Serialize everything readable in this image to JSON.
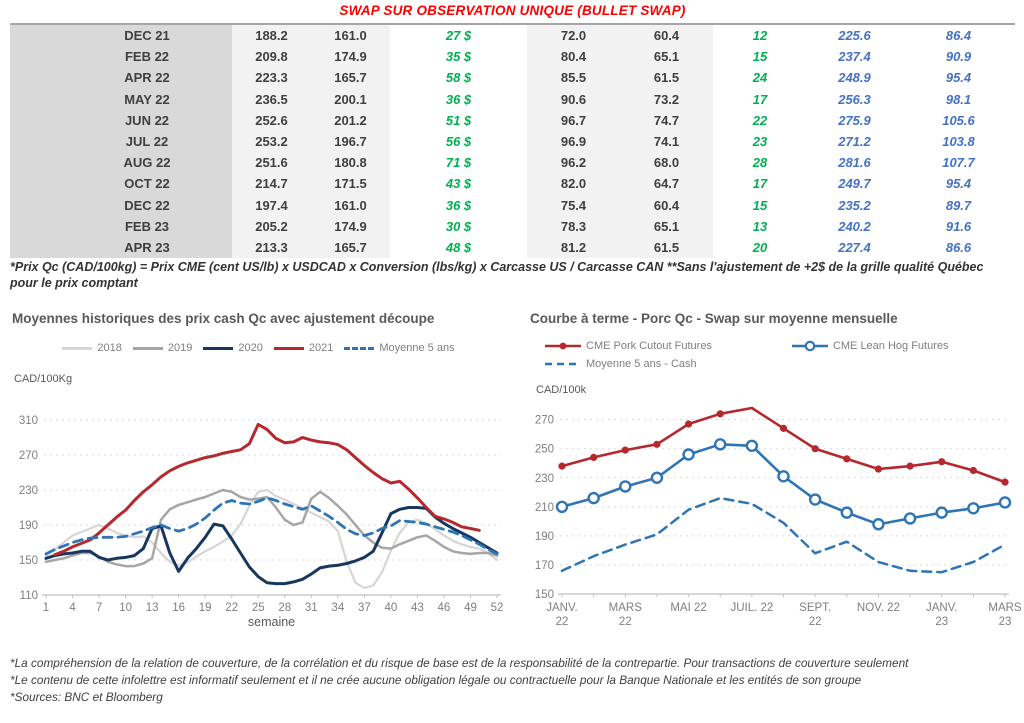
{
  "title": "SWAP SUR OBSERVATION UNIQUE (BULLET SWAP)",
  "table": {
    "rows": [
      [
        "DEC 21",
        "188.2",
        "161.0",
        "27 $",
        "72.0",
        "60.4",
        "12",
        "225.6",
        "86.4"
      ],
      [
        "FEB 22",
        "209.8",
        "174.9",
        "35 $",
        "80.4",
        "65.1",
        "15",
        "237.4",
        "90.9"
      ],
      [
        "APR 22",
        "223.3",
        "165.7",
        "58 $",
        "85.5",
        "61.5",
        "24",
        "248.9",
        "95.4"
      ],
      [
        "MAY 22",
        "236.5",
        "200.1",
        "36 $",
        "90.6",
        "73.2",
        "17",
        "256.3",
        "98.1"
      ],
      [
        "JUN 22",
        "252.6",
        "201.2",
        "51 $",
        "96.7",
        "74.7",
        "22",
        "275.9",
        "105.6"
      ],
      [
        "JUL 22",
        "253.2",
        "196.7",
        "56 $",
        "96.9",
        "74.1",
        "23",
        "271.2",
        "103.8"
      ],
      [
        "AUG 22",
        "251.6",
        "180.8",
        "71 $",
        "96.2",
        "68.0",
        "28",
        "281.6",
        "107.7"
      ],
      [
        "OCT 22",
        "214.7",
        "171.5",
        "43 $",
        "82.0",
        "64.7",
        "17",
        "249.7",
        "95.4"
      ],
      [
        "DEC 22",
        "197.4",
        "161.0",
        "36 $",
        "75.4",
        "60.4",
        "15",
        "235.2",
        "89.7"
      ],
      [
        "FEB 23",
        "205.2",
        "174.9",
        "30 $",
        "78.3",
        "65.1",
        "13",
        "240.2",
        "91.6"
      ],
      [
        "APR 23",
        "213.3",
        "165.7",
        "48 $",
        "81.2",
        "61.5",
        "20",
        "227.4",
        "86.6"
      ]
    ]
  },
  "table_footnote": "*Prix Qc (CAD/100kg) = Prix CME (cent US/lb) x USDCAD x Conversion (lbs/kg) x Carcasse US / Carcasse CAN **Sans l'ajustement de +2$ de la grille qualité Québec pour le prix comptant",
  "chart_data": [
    {
      "id": "historical-cash-prices",
      "type": "line",
      "title": "Moyennes historiques des prix cash Qc avec ajustement découpe",
      "unit_label": "CAD/100Kg",
      "xlabel": "semaine",
      "xticks": [
        1,
        4,
        7,
        10,
        13,
        16,
        19,
        22,
        25,
        28,
        31,
        34,
        37,
        40,
        43,
        46,
        49,
        52
      ],
      "ylim": [
        110,
        310
      ],
      "yticks": [
        110,
        150,
        190,
        230,
        270,
        310
      ],
      "grid": "horizontal-dashed",
      "legend_position": "top",
      "series": [
        {
          "name": "2018",
          "color": "#d6d6d6",
          "style": "solid",
          "width": 2.2,
          "values": [
            155,
            162,
            170,
            178,
            182,
            186,
            190,
            186,
            181,
            178,
            176,
            177,
            170,
            158,
            148,
            144,
            147,
            154,
            160,
            165,
            171,
            178,
            191,
            212,
            228,
            230,
            223,
            219,
            214,
            209,
            204,
            199,
            194,
            183,
            148,
            124,
            118,
            121,
            136,
            161,
            181,
            193,
            196,
            192,
            185,
            178,
            172,
            168,
            165,
            163,
            158,
            150
          ]
        },
        {
          "name": "2019",
          "color": "#a6a6a6",
          "style": "solid",
          "width": 2.5,
          "values": [
            148,
            150,
            152,
            155,
            158,
            158,
            154,
            148,
            145,
            143,
            143,
            146,
            152,
            196,
            208,
            213,
            216,
            219,
            222,
            226,
            230,
            228,
            222,
            219,
            220,
            222,
            210,
            196,
            190,
            193,
            220,
            228,
            221,
            212,
            202,
            190,
            178,
            170,
            164,
            163,
            168,
            172,
            176,
            178,
            172,
            165,
            160,
            158,
            157,
            158,
            158,
            155
          ]
        },
        {
          "name": "2020",
          "color": "#17375e",
          "style": "solid",
          "width": 3,
          "values": [
            152,
            155,
            157,
            158,
            160,
            160,
            153,
            150,
            152,
            153,
            155,
            163,
            186,
            189,
            158,
            137,
            152,
            163,
            176,
            191,
            189,
            174,
            158,
            142,
            131,
            124,
            123,
            123,
            125,
            128,
            134,
            141,
            143,
            144,
            146,
            149,
            153,
            160,
            181,
            203,
            208,
            210,
            210,
            209,
            199,
            192,
            186,
            181,
            176,
            170,
            164,
            158
          ]
        },
        {
          "name": "2021",
          "color": "#b5282d",
          "style": "solid",
          "width": 3,
          "values": [
            null,
            156,
            160,
            165,
            169,
            173,
            181,
            190,
            199,
            207,
            218,
            228,
            236,
            245,
            252,
            257,
            261,
            264,
            267,
            269,
            272,
            274,
            276,
            283,
            305,
            299,
            289,
            284,
            285,
            290,
            287,
            285,
            284,
            282,
            276,
            267,
            258,
            250,
            243,
            238,
            240,
            231,
            221,
            210,
            200,
            197,
            193,
            188,
            186,
            184,
            null,
            null
          ]
        },
        {
          "name": "Moyenne 5 ans",
          "color": "#2e75b6",
          "style": "dashed",
          "width": 2.8,
          "values": [
            157,
            162,
            166,
            170,
            173,
            175,
            176,
            176,
            176,
            177,
            180,
            183,
            187,
            190,
            186,
            183,
            186,
            191,
            198,
            207,
            215,
            218,
            215,
            214,
            217,
            221,
            218,
            214,
            211,
            208,
            212,
            206,
            200,
            193,
            185,
            180,
            178,
            181,
            186,
            189,
            195,
            194,
            193,
            191,
            188,
            185,
            182,
            178,
            173,
            168,
            162,
            157
          ]
        }
      ]
    },
    {
      "id": "forward-curve",
      "type": "line",
      "title": "Courbe à terme - Porc Qc - Swap sur moyenne mensuelle",
      "unit_label": "CAD/100k",
      "n_points": 15,
      "x_ticks": [
        {
          "pos": 0,
          "lines": [
            "JANV.",
            "22"
          ]
        },
        {
          "pos": 2,
          "lines": [
            "MARS",
            "22"
          ]
        },
        {
          "pos": 4,
          "lines": [
            "MAI 22"
          ]
        },
        {
          "pos": 6,
          "lines": [
            "JUIL. 22"
          ]
        },
        {
          "pos": 8,
          "lines": [
            "SEPT.",
            "22"
          ]
        },
        {
          "pos": 10,
          "lines": [
            "NOV. 22"
          ]
        },
        {
          "pos": 12,
          "lines": [
            "JANV.",
            "23"
          ]
        },
        {
          "pos": 14,
          "lines": [
            "MARS",
            "23"
          ]
        }
      ],
      "ylim": [
        150,
        278
      ],
      "yticks": [
        150,
        170,
        190,
        210,
        230,
        250,
        270
      ],
      "grid": "horizontal-dashed",
      "legend_position": "top",
      "series": [
        {
          "name": "CME Pork Cutout Futures",
          "color": "#b5282d",
          "style": "solid",
          "width": 2.6,
          "marker": "filled",
          "marker_skip": [
            6
          ],
          "values": [
            238,
            244,
            249,
            253,
            267,
            274,
            278,
            264,
            250,
            243,
            236,
            238,
            241,
            235,
            227
          ]
        },
        {
          "name": "CME Lean Hog Futures",
          "color": "#2e75b6",
          "style": "solid",
          "width": 2.6,
          "marker": "open",
          "values": [
            210,
            216,
            224,
            230,
            246,
            253,
            252,
            231,
            215,
            206,
            198,
            202,
            206,
            209,
            213
          ]
        },
        {
          "name": "Moyenne 5 ans - Cash",
          "color": "#2e75b6",
          "style": "dashed",
          "width": 2.5,
          "values": [
            166,
            176,
            184,
            191,
            208,
            216,
            212,
            199,
            178,
            186,
            172,
            166,
            165,
            172,
            184
          ]
        }
      ]
    }
  ],
  "footnotes": [
    "*La compréhension de la relation de couverture, de la corrélation et du risque de base est de la responsabilité de la contrepartie. Pour transactions de couverture seulement",
    "*Le contenu de cette infolettre est informatif seulement et il ne crée aucune obligation légale ou contractuelle pour la Banque Nationale et les entités de son groupe",
    "*Sources: BNC et Bloomberg"
  ],
  "colors": {
    "title_red": "#ff0000",
    "table_green": "#00b050",
    "table_blue": "#4472c4",
    "grid": "#d9d9d9",
    "axis": "#bfbfbf",
    "tick_text": "#7f7f7f"
  }
}
